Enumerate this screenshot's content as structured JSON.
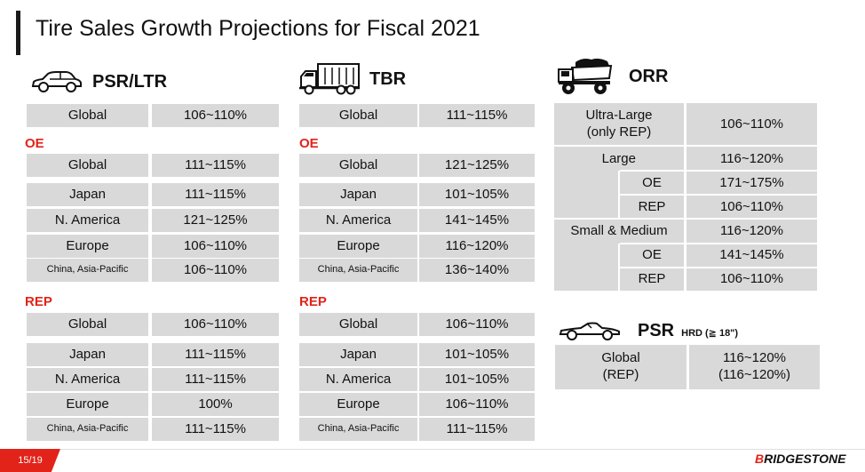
{
  "title": "Tire Sales Growth Projections for Fiscal 2021",
  "page": "15/19",
  "logo": {
    "first": "B",
    "rest": "RIDGESTONE"
  },
  "colors": {
    "accent": "#e2231a",
    "cell": "#d9d9d9"
  },
  "psr": {
    "label": "PSR/LTR",
    "icon": "car-icon",
    "global": {
      "label": "Global",
      "value": "106~110%"
    },
    "oe_label": "OE",
    "oe": [
      {
        "label": "Global",
        "value": "111~115%"
      },
      {
        "label": "Japan",
        "value": "111~115%"
      },
      {
        "label": "N. America",
        "value": "121~125%"
      },
      {
        "label": "Europe",
        "value": "106~110%"
      },
      {
        "label": "China, Asia-Pacific",
        "value": "106~110%"
      }
    ],
    "rep_label": "REP",
    "rep": [
      {
        "label": "Global",
        "value": "106~110%"
      },
      {
        "label": "Japan",
        "value": "111~115%"
      },
      {
        "label": "N. America",
        "value": "111~115%"
      },
      {
        "label": "Europe",
        "value": "100%"
      },
      {
        "label": "China, Asia-Pacific",
        "value": "111~115%"
      }
    ]
  },
  "tbr": {
    "label": "TBR",
    "icon": "truck-icon",
    "global": {
      "label": "Global",
      "value": "111~115%"
    },
    "oe_label": "OE",
    "oe": [
      {
        "label": "Global",
        "value": "121~125%"
      },
      {
        "label": "Japan",
        "value": "101~105%"
      },
      {
        "label": "N. America",
        "value": "141~145%"
      },
      {
        "label": "Europe",
        "value": "116~120%"
      },
      {
        "label": "China, Asia-Pacific",
        "value": "136~140%"
      }
    ],
    "rep_label": "REP",
    "rep": [
      {
        "label": "Global",
        "value": "106~110%"
      },
      {
        "label": "Japan",
        "value": "101~105%"
      },
      {
        "label": "N. America",
        "value": "101~105%"
      },
      {
        "label": "Europe",
        "value": "106~110%"
      },
      {
        "label": "China, Asia-Pacific",
        "value": "111~115%"
      }
    ]
  },
  "orr": {
    "label": "ORR",
    "icon": "dump-truck-icon",
    "ultra_label_1": "Ultra-Large",
    "ultra_label_2": "(only REP)",
    "ultra_value": "106~110%",
    "large_label": "Large",
    "large_value": "116~120%",
    "large_oe_label": "OE",
    "large_oe_value": "171~175%",
    "large_rep_label": "REP",
    "large_rep_value": "106~110%",
    "small_label": "Small & Medium",
    "small_value": "116~120%",
    "small_oe_label": "OE",
    "small_oe_value": "141~145%",
    "small_rep_label": "REP",
    "small_rep_value": "106~110%"
  },
  "psr_hrd": {
    "label": "PSR",
    "sub": "HRD (≧ 18\")",
    "icon": "sports-car-icon",
    "cell_label_1": "Global",
    "cell_label_2": "(REP)",
    "cell_value_1": "116~120%",
    "cell_value_2": "(116~120%)"
  }
}
